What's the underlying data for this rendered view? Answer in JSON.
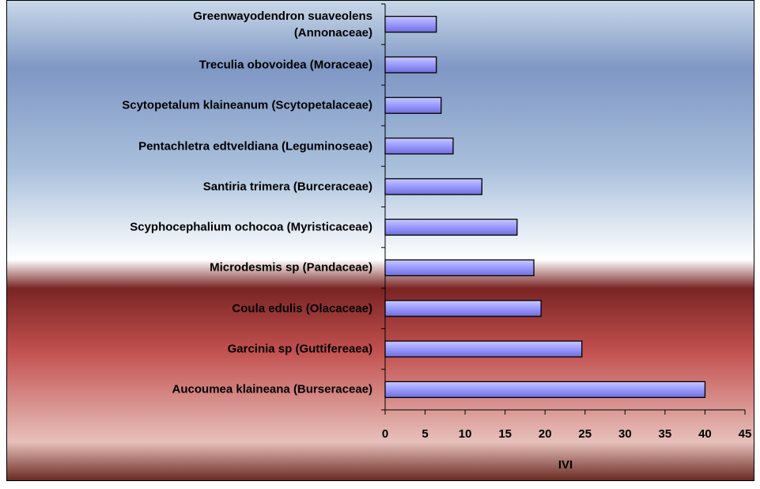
{
  "chart_data": {
    "type": "bar",
    "orientation": "horizontal",
    "categories": [
      "Greenwayodendron suaveolens\n(Annonaceae)",
      "Treculia obovoidea (Moraceae)",
      "Scytopetalum klaineanum (Scytopetalaceae)",
      "Pentachletra edtveldiana (Leguminoseae)",
      "Santiria trimera (Burceraceae)",
      "Scyphocephalium ochocoa (Myristicaceae)",
      "Microdesmis sp (Pandaceae)",
      "Coula edulis (Olacaceae)",
      "Garcinia sp (Guttifereaea)",
      "Aucoumea klaineana (Burseraceae)"
    ],
    "values": [
      6.4,
      6.4,
      7.0,
      8.5,
      12.1,
      16.5,
      18.6,
      19.5,
      24.6,
      40.0
    ],
    "color": "#9999ff",
    "x_label": "IVI",
    "xlim": [
      0,
      45
    ],
    "xticks": [
      0,
      5,
      10,
      15,
      20,
      25,
      30,
      35,
      40,
      45
    ],
    "grid": false
  }
}
